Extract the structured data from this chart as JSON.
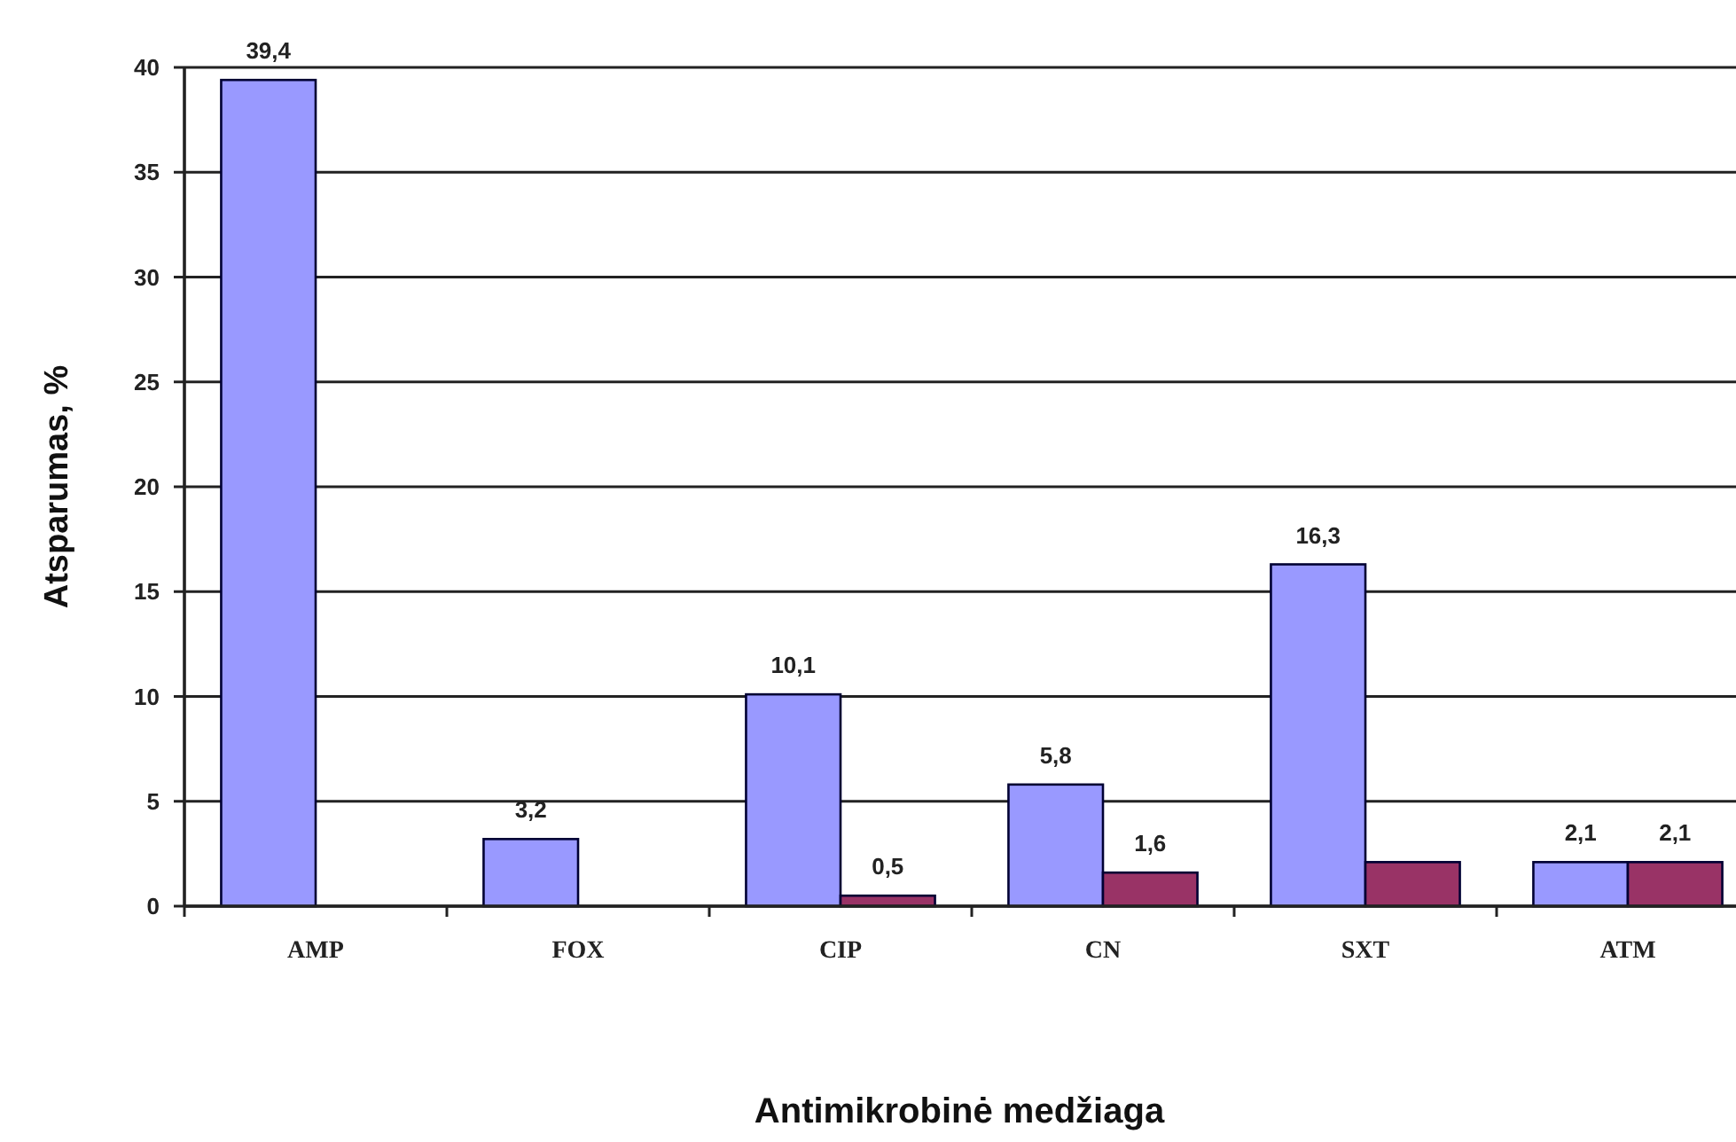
{
  "chart_data": {
    "type": "bar",
    "xlabel": "Antimikrobinė medžiaga",
    "ylabel": "Atsparumas, %",
    "categories": [
      "AMP",
      "FOX",
      "CIP",
      "CN",
      "SXT",
      "ATM"
    ],
    "series": [
      {
        "color": "#9999ff",
        "values": [
          39.4,
          3.2,
          10.1,
          5.8,
          16.3,
          2.1
        ],
        "value_labels": [
          "39,4",
          "3,2",
          "10,1",
          "5,8",
          "16,3",
          "2,1"
        ]
      },
      {
        "color": "#993366",
        "values": [
          null,
          null,
          0.5,
          1.6,
          2.1,
          2.1
        ],
        "value_labels": [
          null,
          null,
          "0,5",
          "1,6",
          null,
          "2,1"
        ]
      }
    ],
    "ylim": [
      0,
      40
    ],
    "yticks": [
      0,
      5,
      10,
      15,
      20,
      25,
      30,
      35,
      40
    ],
    "grid": "y"
  }
}
